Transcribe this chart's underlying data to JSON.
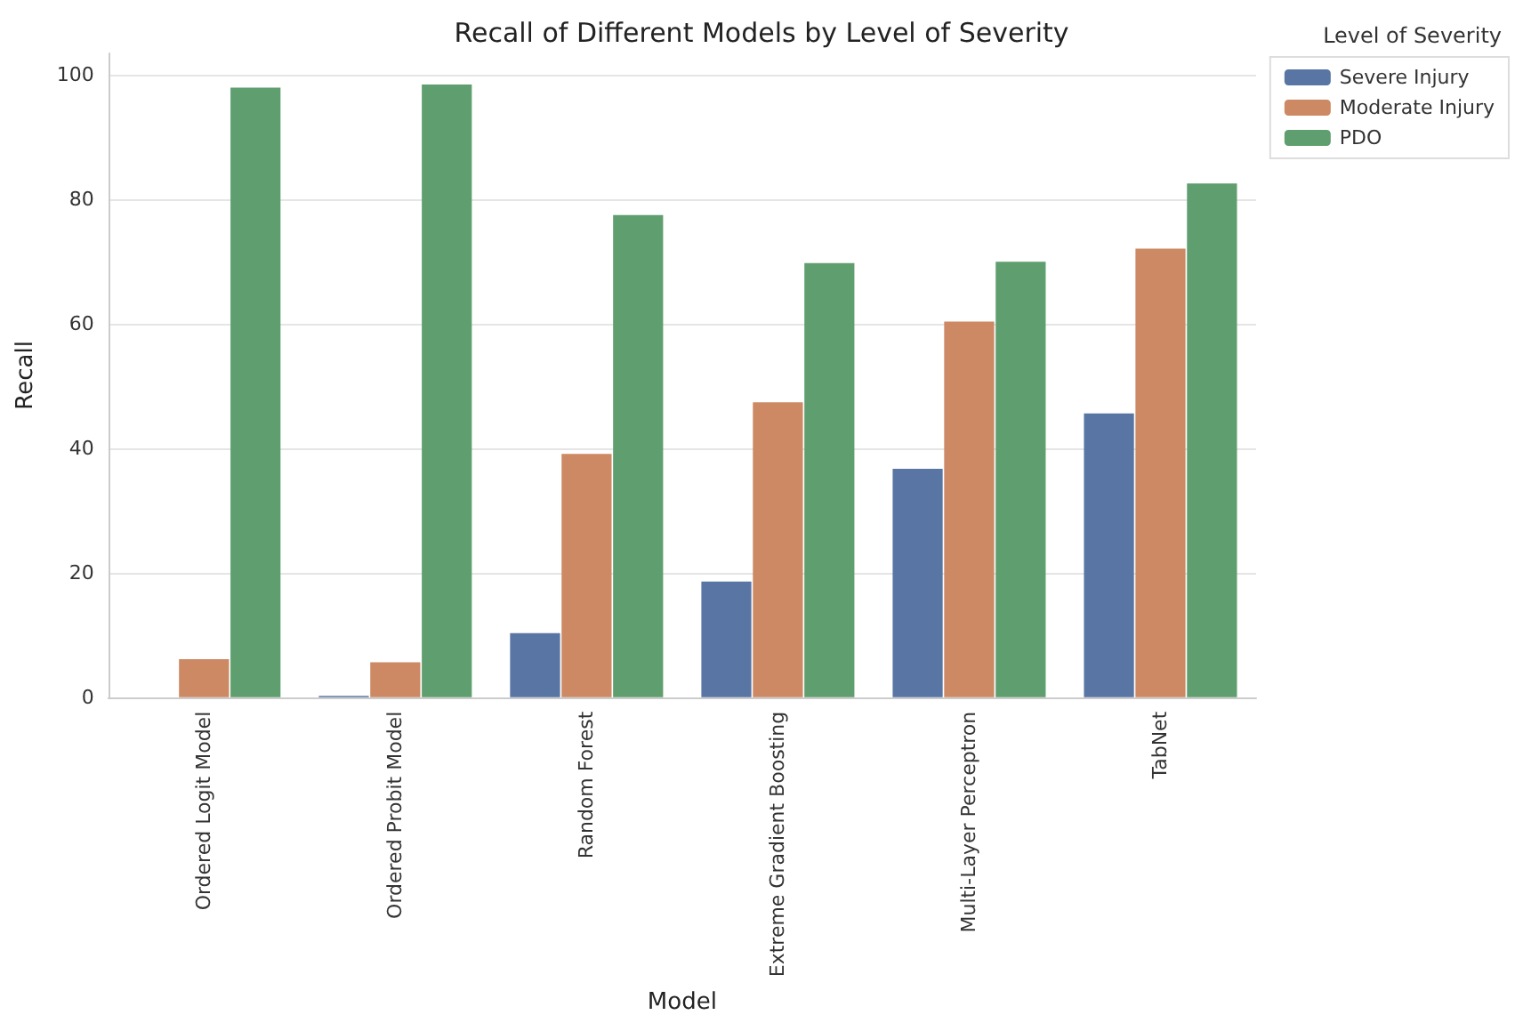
{
  "chart_data": {
    "type": "bar",
    "title": "Recall of Different Models by Level of Severity",
    "xlabel": "Model",
    "ylabel": "Recall",
    "legend_title": "Level of Severity",
    "categories": [
      "Ordered Logit Model",
      "Ordered Probit Model",
      "Random Forest",
      "Extreme Gradient Boosting",
      "Multi-Layer Perceptron",
      "TabNet"
    ],
    "series": [
      {
        "name": "Severe Injury",
        "color": "#5875a4",
        "values": [
          0,
          0.2,
          10.3,
          18.6,
          36.7,
          45.6
        ]
      },
      {
        "name": "Moderate Injury",
        "color": "#cc8963",
        "values": [
          6.1,
          5.6,
          39.1,
          47.4,
          60.4,
          72.1
        ]
      },
      {
        "name": "PDO",
        "color": "#5f9e6e",
        "values": [
          98.0,
          98.5,
          77.5,
          69.8,
          70.0,
          82.6
        ]
      }
    ],
    "ylim": [
      0,
      103.5
    ],
    "yticks": [
      0,
      20,
      40,
      60,
      80,
      100
    ],
    "grid": "y",
    "legend": "top right"
  }
}
